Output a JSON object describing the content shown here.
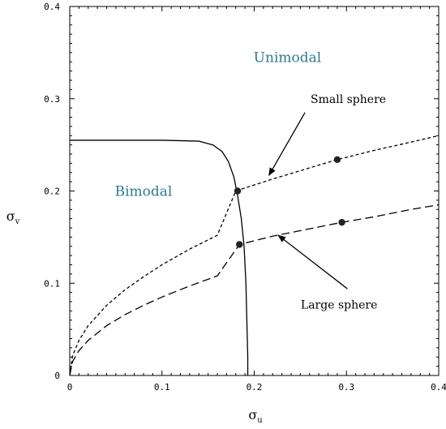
{
  "chart_data": {
    "type": "line",
    "xlabel": "σ",
    "xlabel_sub": "u",
    "ylabel": "σ",
    "ylabel_sub": "v",
    "xlim": [
      0,
      0.4
    ],
    "ylim": [
      0,
      0.4
    ],
    "xticks": [
      0,
      0.1,
      0.2,
      0.3,
      0.4
    ],
    "xtick_labels": [
      "0",
      "0.1",
      "0.2",
      "0.3",
      "0.4"
    ],
    "yticks": [
      0,
      0.1,
      0.2,
      0.3,
      0.4
    ],
    "ytick_labels": [
      "0",
      "0.1",
      "0.2",
      "0.3",
      "0.4"
    ],
    "grid": false,
    "series": [
      {
        "style": "solid",
        "x": [
          0.0,
          0.05,
          0.1,
          0.14,
          0.155,
          0.165,
          0.172,
          0.178,
          0.182,
          0.186,
          0.189,
          0.191,
          0.192,
          0.193,
          0.193
        ],
        "y": [
          0.255,
          0.255,
          0.255,
          0.254,
          0.25,
          0.243,
          0.232,
          0.215,
          0.195,
          0.17,
          0.14,
          0.1,
          0.06,
          0.02,
          0.0
        ]
      },
      {
        "name": "Small sphere",
        "style": "short-dash",
        "x": [
          0.0,
          0.003,
          0.01,
          0.02,
          0.04,
          0.06,
          0.08,
          0.1,
          0.13,
          0.16,
          0.18,
          0.22,
          0.26,
          0.29,
          0.33,
          0.37,
          0.4
        ],
        "y": [
          0.0,
          0.021,
          0.038,
          0.054,
          0.076,
          0.093,
          0.107,
          0.12,
          0.137,
          0.152,
          0.2,
          0.213,
          0.225,
          0.234,
          0.244,
          0.253,
          0.26
        ]
      },
      {
        "name": "Large sphere",
        "style": "long-dash",
        "x": [
          0.0,
          0.003,
          0.01,
          0.02,
          0.04,
          0.06,
          0.08,
          0.1,
          0.13,
          0.16,
          0.184,
          0.22,
          0.26,
          0.295,
          0.33,
          0.37,
          0.4
        ],
        "y": [
          0.0,
          0.015,
          0.027,
          0.038,
          0.054,
          0.066,
          0.076,
          0.085,
          0.097,
          0.108,
          0.142,
          0.151,
          0.159,
          0.166,
          0.172,
          0.18,
          0.185
        ]
      }
    ],
    "markers": [
      {
        "x": 0.182,
        "y": 0.2
      },
      {
        "x": 0.29,
        "y": 0.234
      },
      {
        "x": 0.184,
        "y": 0.142
      },
      {
        "x": 0.295,
        "y": 0.166
      }
    ],
    "region_labels": [
      {
        "text": "Unimodal",
        "x": 0.236,
        "y": 0.345
      },
      {
        "text": "Bimodal",
        "x": 0.08,
        "y": 0.2
      }
    ],
    "annotations": [
      {
        "text": "Small sphere",
        "x": 0.302,
        "y": 0.3,
        "arrow_from": [
          0.255,
          0.285
        ],
        "arrow_to": [
          0.216,
          0.217
        ]
      },
      {
        "text": "Large sphere",
        "x": 0.292,
        "y": 0.077,
        "arrow_from": [
          0.301,
          0.094
        ],
        "arrow_to": [
          0.226,
          0.152
        ]
      }
    ]
  }
}
